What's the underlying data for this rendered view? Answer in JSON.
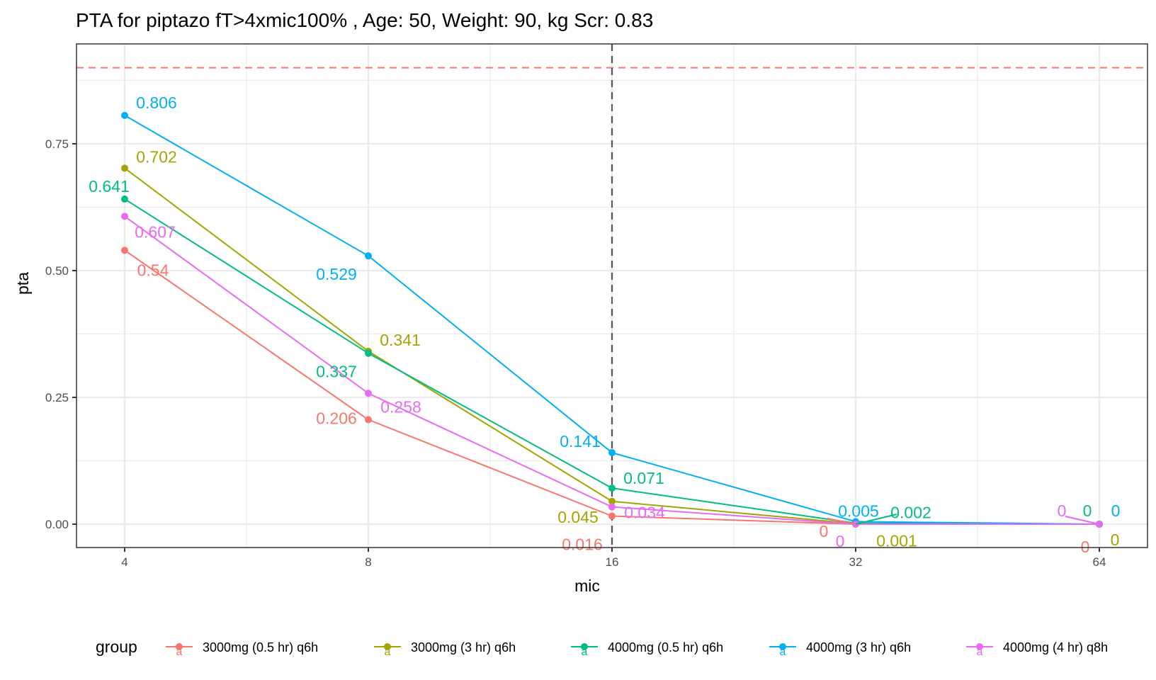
{
  "chart_data": {
    "type": "line",
    "title": "PTA for piptazo fT>4xmic100% , Age: 50, Weight: 90, kg Scr: 0.83",
    "xlabel": "mic",
    "ylabel": "pta",
    "x_scale": "log2",
    "x": [
      4,
      8,
      16,
      32,
      64
    ],
    "x_tick_labels": [
      "4",
      "8",
      "16",
      "32",
      "64"
    ],
    "y_ticks": [
      0.0,
      0.25,
      0.5,
      0.75
    ],
    "y_tick_labels": [
      "0.00",
      "0.25",
      "0.50",
      "0.75"
    ],
    "ylim": [
      -0.045,
      0.945
    ],
    "grid": true,
    "reference_lines": {
      "horizontal": {
        "y": 0.9,
        "color": "#F8766D",
        "style": "dashed"
      },
      "vertical": {
        "x": 16,
        "color": "#555555",
        "style": "dashed"
      }
    },
    "legend": {
      "title": "group",
      "position": "bottom"
    },
    "series": [
      {
        "name": "3000mg (0.5 hr) q6h",
        "color": "#F8766D",
        "values": [
          0.54,
          0.206,
          0.016,
          0,
          0
        ],
        "labels": [
          "0.54",
          "0.206",
          "0.016",
          "0",
          "0"
        ]
      },
      {
        "name": "3000mg (3 hr) q6h",
        "color": "#A3A500",
        "values": [
          0.702,
          0.341,
          0.045,
          0.001,
          0
        ],
        "labels": [
          "0.702",
          "0.341",
          "0.045",
          "0.001",
          "0"
        ]
      },
      {
        "name": "4000mg (0.5 hr) q6h",
        "color": "#00BF7D",
        "values": [
          0.641,
          0.337,
          0.071,
          0.002,
          0
        ],
        "labels": [
          "0.641",
          "0.337",
          "0.071",
          "0.002",
          "0"
        ]
      },
      {
        "name": "4000mg (3 hr) q6h",
        "color": "#00B0F6",
        "values": [
          0.806,
          0.529,
          0.141,
          0.005,
          0
        ],
        "labels": [
          "0.806",
          "0.529",
          "0.141",
          "0.005",
          "0"
        ]
      },
      {
        "name": "4000mg (4 hr) q8h",
        "color": "#E76BF3",
        "values": [
          0.607,
          0.258,
          0.034,
          0,
          0
        ],
        "labels": [
          "0.607",
          "0.258",
          "0.034",
          "0",
          "0"
        ]
      }
    ]
  }
}
